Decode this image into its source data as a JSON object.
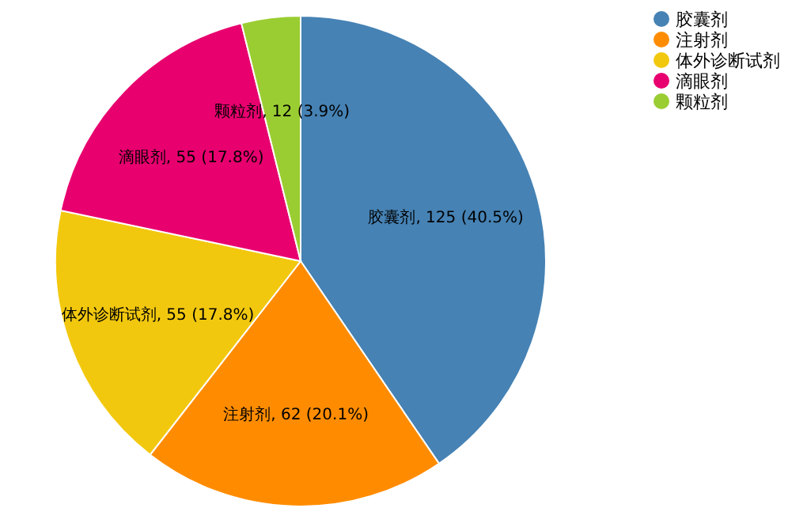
{
  "chart_data": {
    "type": "pie",
    "categories": [
      "胶囊剂",
      "注射剂",
      "体外诊断试剂",
      "滴眼剂",
      "颗粒剂"
    ],
    "values": [
      125,
      62,
      55,
      55,
      12
    ],
    "colors": [
      "#4682b4",
      "#ff8c00",
      "#f2c80f",
      "#e8006f",
      "#9acd32"
    ],
    "value_labels": [
      "胶囊剂, 125 (40.5%)",
      "注射剂, 62 (20.1%)",
      "体外诊断试剂, 55 (17.8%)",
      "滴眼剂, 55 (17.8%)",
      "颗粒剂, 12 (3.9%)"
    ],
    "legend": "top right"
  }
}
